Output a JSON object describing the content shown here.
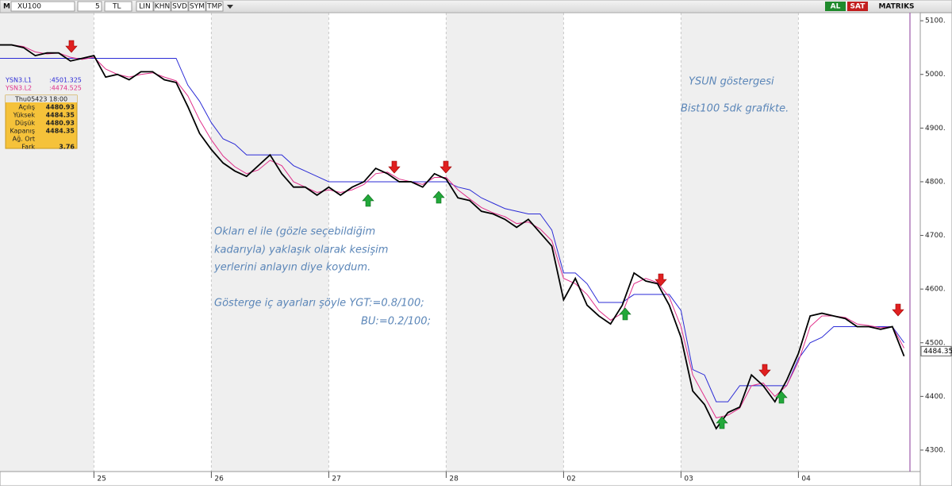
{
  "toolbar": {
    "symbol": "XU100",
    "period": "5",
    "currency": "TL",
    "buttons": [
      "LIN",
      "KHN",
      "SVD",
      "SYM",
      "TMP"
    ],
    "buy": "AL",
    "sell": "SAT",
    "brand": "MATRIKS"
  },
  "info_box": {
    "header": "Thu05423 18:00",
    "rows": [
      [
        "Açılış",
        "4480.93"
      ],
      [
        "Yüksek",
        "4484.35"
      ],
      [
        "Düşük",
        "4480.93"
      ],
      [
        "Kapanış",
        "4484.35"
      ],
      [
        "Ağ. Ort"
      ],
      [
        "Fark",
        "3.76"
      ]
    ]
  },
  "annotations": [
    "YSUN göstergesi",
    "Bist100 5dk grafikte.",
    "Okları el ile (gözle seçebildiğim",
    "kadarıyla) yaklaşık olarak kesişim",
    "yerlerini anlayın diye koydum.",
    "Gösterge iç ayarları şöyle YGT:=0.8/100;",
    "BU:=0.2/100;"
  ],
  "chart_data": {
    "type": "line",
    "categories": [
      null,
      null,
      null,
      null,
      null,
      null,
      null,
      null,
      "25",
      null,
      null,
      null,
      null,
      null,
      null,
      null,
      null,
      null,
      "26",
      null,
      null,
      null,
      null,
      null,
      null,
      null,
      null,
      null,
      "27",
      null,
      null,
      null,
      null,
      null,
      null,
      null,
      null,
      null,
      "28",
      null,
      null,
      null,
      null,
      null,
      null,
      null,
      null,
      null,
      "02",
      null,
      null,
      null,
      null,
      null,
      null,
      null,
      null,
      null,
      "03",
      null,
      null,
      null,
      null,
      null,
      null,
      null,
      null,
      null,
      "04",
      null,
      null,
      null,
      null,
      null,
      null,
      null,
      null,
      null
    ],
    "series": [
      {
        "color": "#000000",
        "values": [
          5055,
          5055,
          5050,
          5035,
          5040,
          5040,
          5025,
          5030,
          5035,
          4995,
          5000,
          4990,
          5005,
          5005,
          4990,
          4985,
          4940,
          4890,
          4860,
          4835,
          4820,
          4810,
          4830,
          4850,
          4815,
          4790,
          4790,
          4775,
          4790,
          4775,
          4790,
          4800,
          4825,
          4815,
          4800,
          4800,
          4790,
          4815,
          4805,
          4770,
          4765,
          4745,
          4740,
          4730,
          4715,
          4730,
          4705,
          4680,
          4580,
          4620,
          4570,
          4550,
          4535,
          4570,
          4630,
          4615,
          4610,
          4570,
          4510,
          4410,
          4385,
          4340,
          4370,
          4380,
          4440,
          4420,
          4390,
          4430,
          4480,
          4550,
          4555,
          4550,
          4545,
          4530,
          4530,
          4525,
          4530,
          4475
        ]
      },
      {
        "name": "YSN3.L1",
        "legend_value": ":4501.325",
        "color": "#2b2bd6",
        "values": [
          5030,
          5030,
          5030,
          5030,
          5030,
          5030,
          5030,
          5030,
          5030,
          5030,
          5030,
          5030,
          5030,
          5030,
          5030,
          5030,
          4980,
          4950,
          4910,
          4880,
          4870,
          4850,
          4850,
          4850,
          4850,
          4830,
          4820,
          4810,
          4800,
          4800,
          4800,
          4800,
          4800,
          4800,
          4800,
          4800,
          4800,
          4800,
          4800,
          4790,
          4785,
          4770,
          4760,
          4750,
          4745,
          4740,
          4740,
          4710,
          4630,
          4630,
          4610,
          4575,
          4575,
          4575,
          4590,
          4590,
          4590,
          4590,
          4560,
          4450,
          4440,
          4390,
          4390,
          4420,
          4420,
          4420,
          4420,
          4420,
          4470,
          4500,
          4510,
          4530,
          4530,
          4530,
          4530,
          4530,
          4530,
          4500
        ]
      },
      {
        "name": "YSN3.L2",
        "legend_value": ":4474.525",
        "color": "#e0308a",
        "values": [
          5055,
          5055,
          5052,
          5042,
          5038,
          5040,
          5032,
          5028,
          5032,
          5010,
          5000,
          4995,
          5000,
          5003,
          4995,
          4988,
          4960,
          4915,
          4878,
          4848,
          4828,
          4815,
          4822,
          4840,
          4830,
          4800,
          4790,
          4780,
          4785,
          4780,
          4785,
          4795,
          4815,
          4818,
          4805,
          4800,
          4795,
          4808,
          4808,
          4785,
          4768,
          4752,
          4742,
          4735,
          4722,
          4725,
          4712,
          4690,
          4620,
          4610,
          4590,
          4560,
          4542,
          4555,
          4610,
          4620,
          4612,
          4585,
          4530,
          4440,
          4400,
          4360,
          4365,
          4378,
          4420,
          4425,
          4400,
          4420,
          4465,
          4530,
          4550,
          4550,
          4547,
          4535,
          4532,
          4528,
          4530,
          4490
        ]
      }
    ],
    "last_price": 4484.35,
    "ylim": [
      4260,
      5115
    ],
    "yticks": [
      {
        "value": 4300,
        "label": "4300."
      },
      {
        "value": 4400,
        "label": "4400."
      },
      {
        "value": 4500,
        "label": "4500."
      },
      {
        "value": 4600,
        "label": "4600."
      },
      {
        "value": 4700,
        "label": "4700."
      },
      {
        "value": 4800,
        "label": "4800."
      },
      {
        "value": 4900,
        "label": "4900."
      },
      {
        "value": 5000,
        "label": "5000."
      },
      {
        "value": 5100,
        "label": "5100."
      }
    ]
  }
}
